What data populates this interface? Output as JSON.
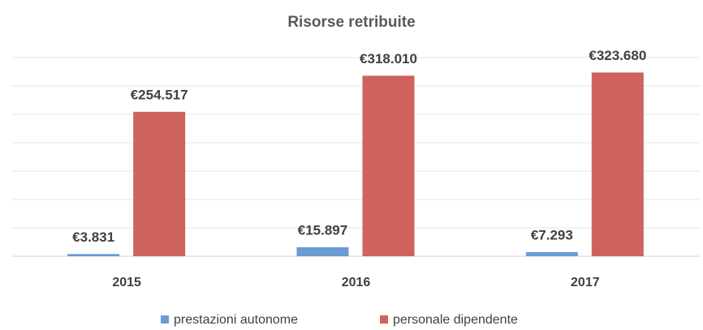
{
  "chart_data": {
    "type": "bar",
    "title": "Risorse retribuite",
    "categories": [
      "2015",
      "2016",
      "2017"
    ],
    "series": [
      {
        "name": "prestazioni autonome",
        "color": "#6a9bd3",
        "values": [
          3831,
          15897,
          7293
        ],
        "value_labels": [
          "€3.831",
          "€15.897",
          "€7.293"
        ]
      },
      {
        "name": "personale dipendente",
        "color": "#cd635c",
        "values": [
          254517,
          318010,
          323680
        ],
        "value_labels": [
          "€254.517",
          "€318.010",
          "€323.680"
        ]
      }
    ],
    "ylim": [
      0,
      350000
    ],
    "yticks": [
      0,
      50000,
      100000,
      150000,
      200000,
      250000,
      300000,
      350000
    ],
    "grid": true,
    "legend": "bottom"
  }
}
